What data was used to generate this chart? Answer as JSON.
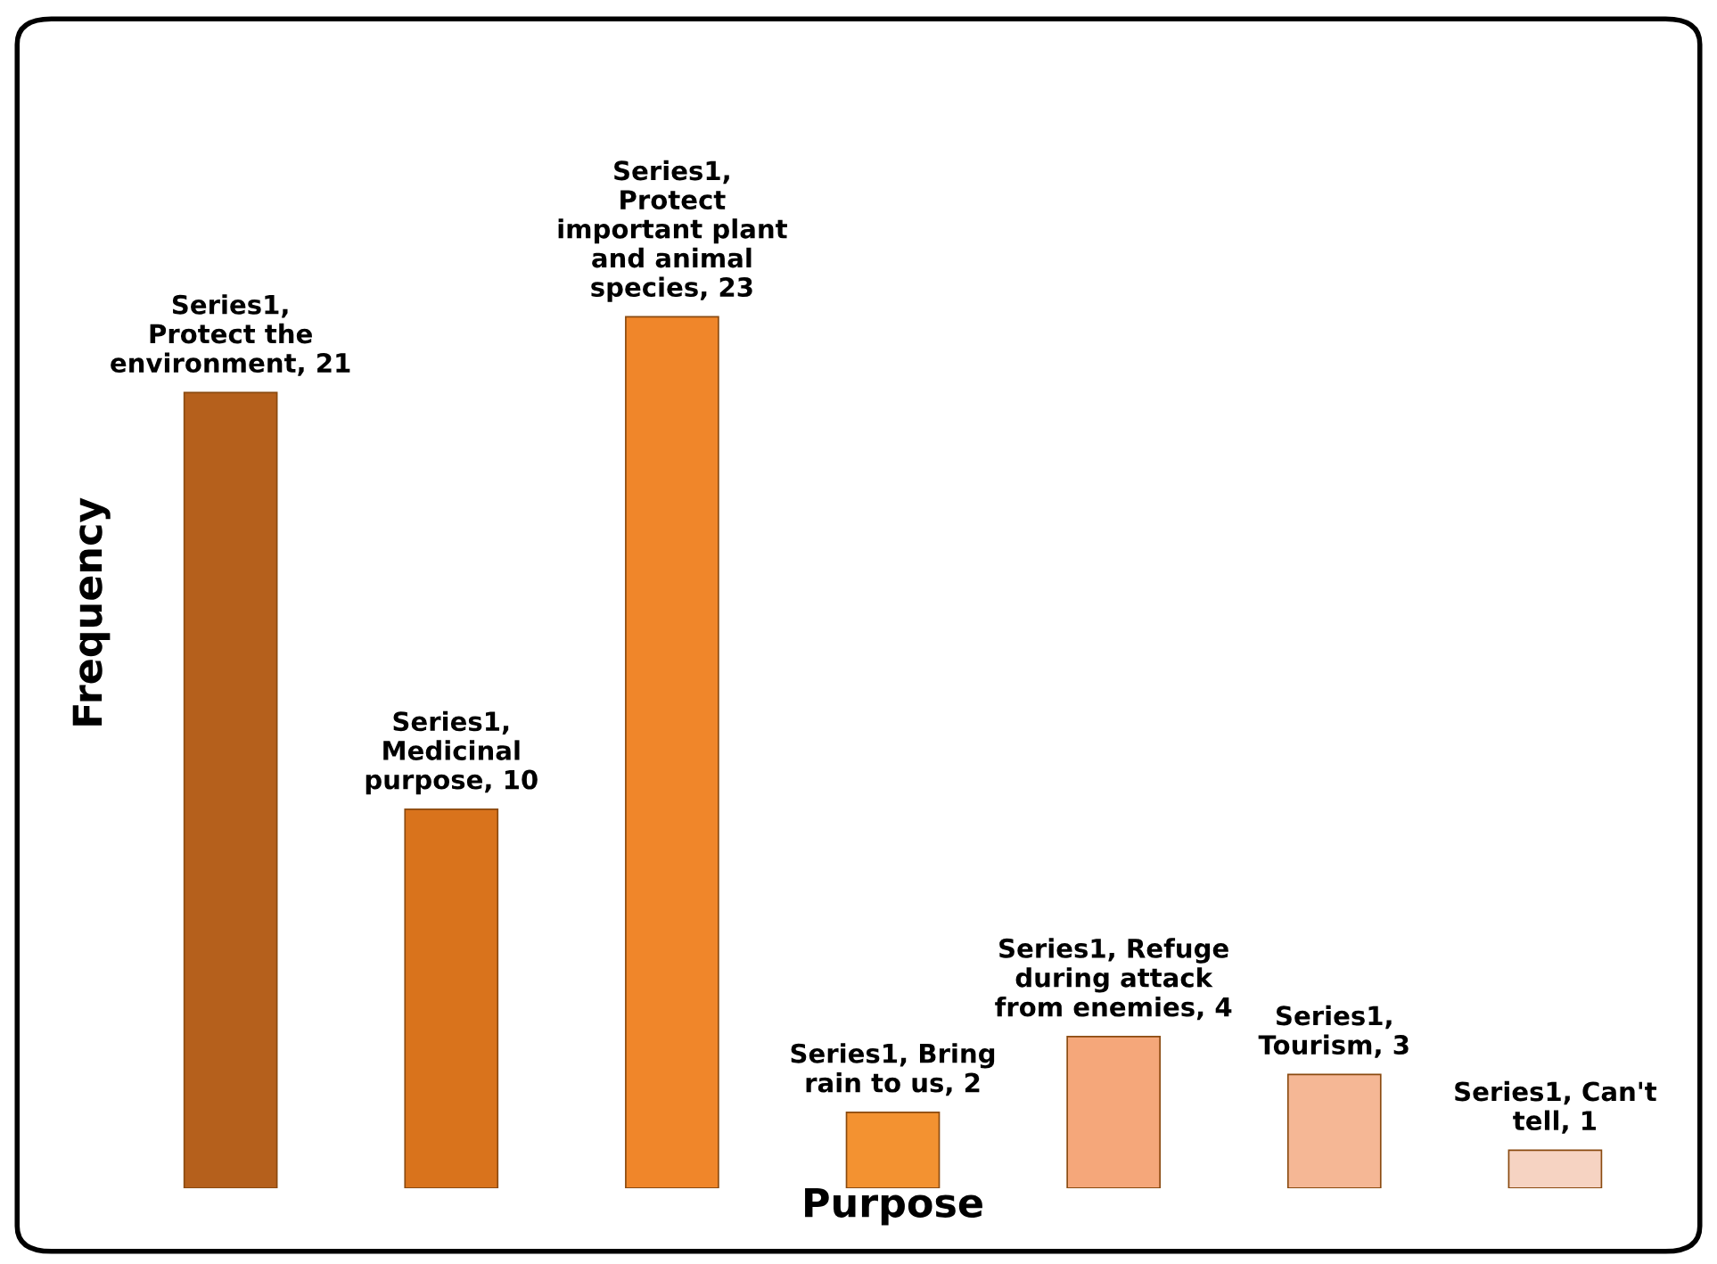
{
  "chart_data": {
    "type": "bar",
    "xlabel": "Purpose",
    "ylabel": "Frequency",
    "categories": [
      null,
      null,
      null,
      null,
      null,
      null,
      null
    ],
    "values": [
      21,
      10,
      23,
      2,
      4,
      3,
      1
    ],
    "colors": [
      "#b5601c",
      "#d9731c",
      "#f0862a",
      "#f39231",
      "#f5a77a",
      "#f5b795",
      "#f6d3c2"
    ],
    "value_labels": [
      "Series1, Protect the environment, 21",
      "Series1, Medicinal purpose, 10",
      "Series1, Protect important plant and animal species, 23",
      "Series1, Bring rain to us, 2",
      "Series1, Refuge during attack from enemies, 4",
      "Series1, Tourism, 3",
      "Series1, Can't tell, 1"
    ],
    "grid": false,
    "legend": false
  }
}
